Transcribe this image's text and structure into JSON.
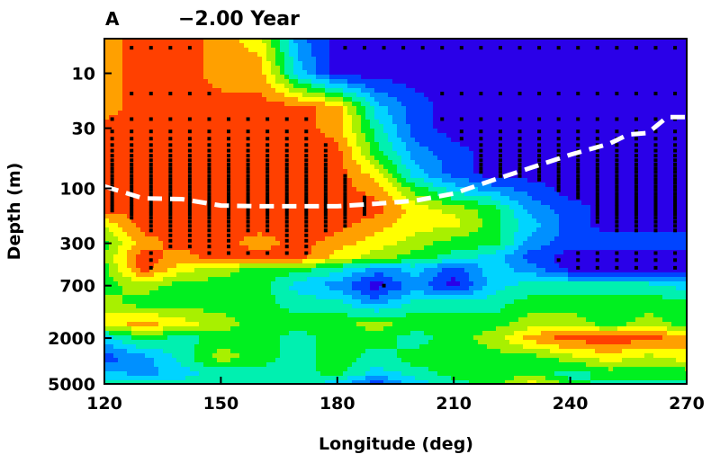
{
  "chart_data": {
    "type": "heatmap",
    "panel_label": "A",
    "title": "−2.00 Year",
    "xlabel": "Longitude (deg)",
    "ylabel": "Depth (m)",
    "xlim": [
      120,
      270
    ],
    "ylim": [
      5,
      5000
    ],
    "y_scale": "log",
    "y_inverted": true,
    "grid": false,
    "xticks": [
      "120",
      "150",
      "180",
      "210",
      "240",
      "270"
    ],
    "yticks": [
      "10",
      "30",
      "100",
      "300",
      "700",
      "2000",
      "5000"
    ],
    "colormap_levels": [
      "#2a00e8",
      "#0044ff",
      "#0090ff",
      "#00d4ff",
      "#00f0b0",
      "#00f020",
      "#a8f000",
      "#ffff00",
      "#ffa000",
      "#ff4000"
    ],
    "x": [
      120,
      130,
      140,
      150,
      160,
      170,
      180,
      190,
      200,
      210,
      220,
      230,
      240,
      250,
      260,
      270
    ],
    "y": [
      5,
      10,
      20,
      30,
      50,
      75,
      100,
      150,
      200,
      300,
      400,
      500,
      700,
      1000,
      1500,
      2000,
      3000,
      4000,
      5000
    ],
    "z_level": [
      [
        8,
        9,
        9,
        8,
        7,
        2,
        0,
        0,
        0,
        0,
        0,
        0,
        0,
        0,
        0,
        0
      ],
      [
        8,
        9,
        9,
        8,
        8,
        3,
        0,
        0,
        0,
        0,
        0,
        0,
        0,
        0,
        0,
        0
      ],
      [
        8,
        9,
        9,
        9,
        9,
        9,
        8,
        3,
        1,
        0,
        0,
        0,
        0,
        0,
        0,
        0
      ],
      [
        9,
        9,
        9,
        9,
        9,
        9,
        8,
        4,
        1,
        0,
        0,
        0,
        0,
        0,
        0,
        0
      ],
      [
        9,
        9,
        9,
        9,
        9,
        9,
        9,
        5,
        2,
        1,
        0,
        0,
        0,
        0,
        0,
        0
      ],
      [
        9,
        9,
        9,
        9,
        9,
        9,
        9,
        7,
        3,
        1,
        0,
        0,
        0,
        0,
        0,
        0
      ],
      [
        9,
        9,
        9,
        9,
        9,
        9,
        9,
        8,
        5,
        3,
        2,
        1,
        0,
        0,
        0,
        0
      ],
      [
        9,
        9,
        9,
        9,
        9,
        9,
        9,
        9,
        7,
        6,
        5,
        2,
        1,
        0,
        0,
        0
      ],
      [
        7,
        9,
        9,
        9,
        9,
        9,
        9,
        8,
        7,
        7,
        5,
        3,
        1,
        0,
        0,
        0
      ],
      [
        5,
        8,
        9,
        9,
        8,
        9,
        8,
        7,
        6,
        5,
        5,
        2,
        1,
        1,
        1,
        1
      ],
      [
        6,
        9,
        8,
        9,
        9,
        9,
        7,
        6,
        5,
        4,
        3,
        1,
        0,
        0,
        0,
        0
      ],
      [
        5,
        9,
        7,
        6,
        5,
        5,
        4,
        2,
        3,
        1,
        3,
        2,
        0,
        0,
        0,
        0
      ],
      [
        5,
        6,
        5,
        5,
        5,
        3,
        2,
        0,
        2,
        0,
        3,
        4,
        4,
        4,
        4,
        3
      ],
      [
        6,
        5,
        5,
        5,
        5,
        4,
        4,
        2,
        4,
        4,
        4,
        5,
        5,
        5,
        5,
        5
      ],
      [
        7,
        8,
        7,
        6,
        5,
        5,
        5,
        6,
        5,
        5,
        5,
        6,
        6,
        5,
        6,
        5
      ],
      [
        3,
        5,
        4,
        5,
        5,
        4,
        5,
        5,
        4,
        5,
        6,
        8,
        9,
        9,
        9,
        8
      ],
      [
        1,
        2,
        4,
        6,
        5,
        4,
        5,
        4,
        5,
        5,
        5,
        5,
        6,
        7,
        6,
        7
      ],
      [
        3,
        2,
        3,
        4,
        4,
        4,
        5,
        3,
        4,
        5,
        5,
        5,
        4,
        5,
        5,
        5
      ],
      [
        4,
        4,
        4,
        4,
        4,
        4,
        3,
        1,
        3,
        4,
        5,
        7,
        5,
        4,
        4,
        4
      ]
    ],
    "dashed_line": {
      "color": "#ffffff",
      "lon": [
        120,
        130,
        140,
        150,
        160,
        170,
        180,
        190,
        200,
        210,
        220,
        230,
        240,
        250,
        255,
        260,
        265,
        270
      ],
      "depth": [
        96,
        122,
        124,
        141,
        143,
        143,
        143,
        136,
        128,
        111,
        85,
        66,
        51,
        41,
        34,
        33,
        24,
        24
      ]
    },
    "significance_marker_color": "#000000"
  }
}
